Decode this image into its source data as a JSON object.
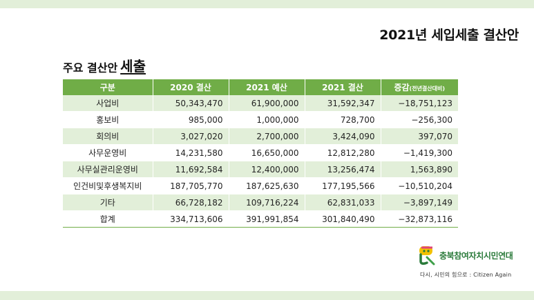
{
  "page_title": "2021년 세입세출 결산안",
  "section": {
    "title": "주요 결산안",
    "emphasis": "세출"
  },
  "table": {
    "headers": [
      {
        "main": "구분",
        "sub": ""
      },
      {
        "main": "2020 결산",
        "sub": ""
      },
      {
        "main": "2021 예산",
        "sub": ""
      },
      {
        "main": "2021 결산",
        "sub": ""
      },
      {
        "main": "증감",
        "sub": "(전년결산대비)"
      }
    ],
    "rows": [
      [
        "사업비",
        "50,343,470",
        "61,900,000",
        "31,592,347",
        "−18,751,123"
      ],
      [
        "홍보비",
        "985,000",
        "1,000,000",
        "728,700",
        "−256,300"
      ],
      [
        "회의비",
        "3,027,020",
        "2,700,000",
        "3,424,090",
        "397,070"
      ],
      [
        "사무운영비",
        "14,231,580",
        "16,650,000",
        "12,812,280",
        "−1,419,300"
      ],
      [
        "사무실관리운영비",
        "11,692,584",
        "12,400,000",
        "13,256,474",
        "1,563,890"
      ],
      [
        "인건비및후생복지비",
        "187,705,770",
        "187,625,630",
        "177,195,566",
        "−10,510,204"
      ],
      [
        "기타",
        "66,728,182",
        "109,716,224",
        "62,831,033",
        "−3,897,149"
      ],
      [
        "합계",
        "334,713,606",
        "391,991,854",
        "301,840,490",
        "−32,873,116"
      ]
    ]
  },
  "logo": {
    "name": "충북참여자치시민연대",
    "slogan": "다시, 시민의 힘으로 : Citizen Again",
    "icon": "logo-mark"
  },
  "colors": {
    "header_green": "#70ad47",
    "stripe_green": "#e2efd9",
    "logo_green": "#2a7a3a"
  }
}
